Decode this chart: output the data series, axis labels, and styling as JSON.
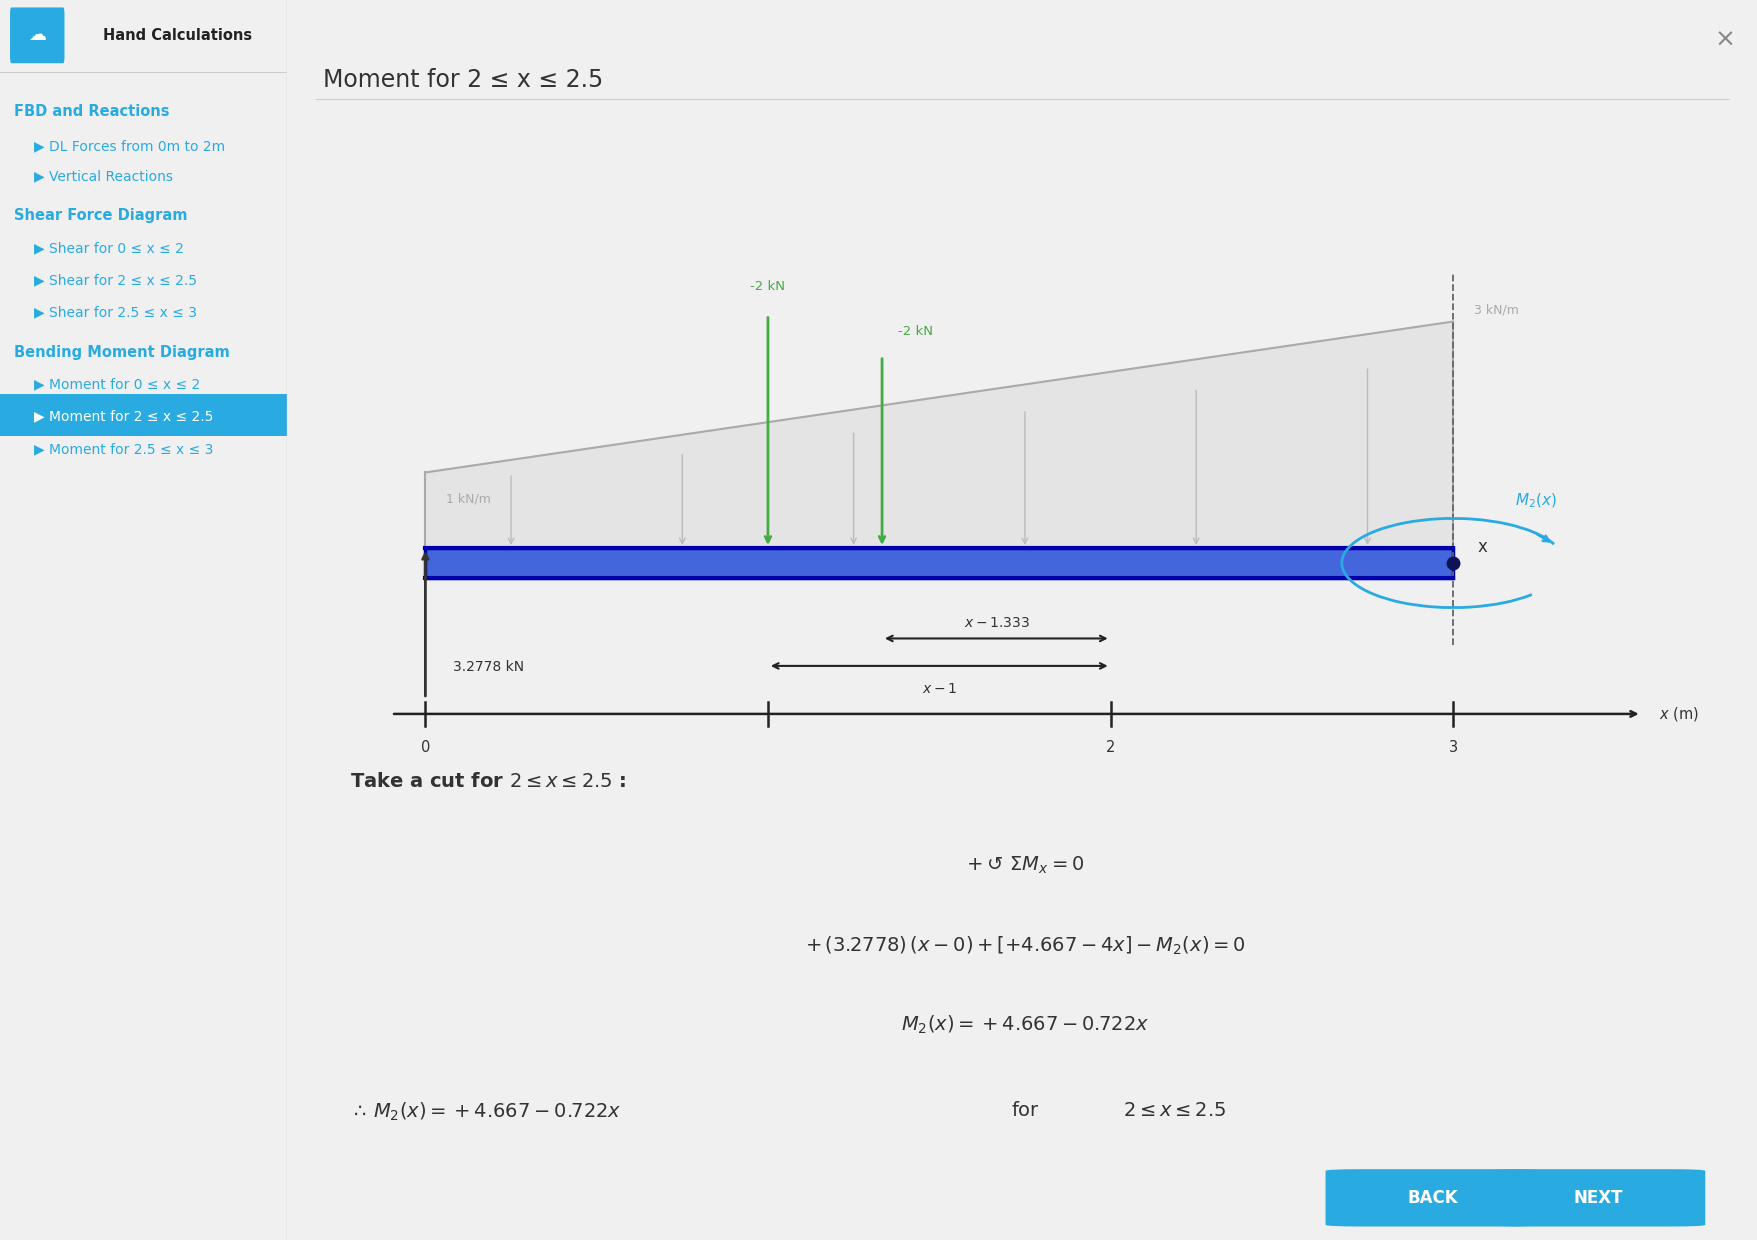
{
  "title": "Moment for 2 ≤ x ≤ 2.5",
  "sidebar_title": "Hand Calculations",
  "highlight_color": "#29abe2",
  "sidebar_items": [
    {
      "text": "FBD and Reactions",
      "level": 0,
      "active": false
    },
    {
      "text": "DL Forces from 0m to 2m",
      "level": 1,
      "active": false
    },
    {
      "text": "Vertical Reactions",
      "level": 1,
      "active": false
    },
    {
      "text": "Shear Force Diagram",
      "level": 0,
      "active": false
    },
    {
      "text": "Shear for 0 ≤ x ≤ 2",
      "level": 1,
      "active": false
    },
    {
      "text": "Shear for 2 ≤ x ≤ 2.5",
      "level": 1,
      "active": false
    },
    {
      "text": "Shear for 2.5 ≤ x ≤ 3",
      "level": 1,
      "active": false
    },
    {
      "text": "Bending Moment Diagram",
      "level": 0,
      "active": false
    },
    {
      "text": "Moment for 0 ≤ x ≤ 2",
      "level": 1,
      "active": false
    },
    {
      "text": "Moment for 2 ≤ x ≤ 2.5",
      "level": 1,
      "active": true
    },
    {
      "text": "Moment for 2.5 ≤ x ≤ 3",
      "level": 1,
      "active": false
    }
  ],
  "beam_color": "#3333cc",
  "beam_light_color": "#5577ee",
  "reaction_force": "3.2778 kN",
  "distributed_load_label": "1 kN/m",
  "distributed_load_label2": "3 kN/m",
  "point_forces": [
    {
      "x": 1.0,
      "label": "-2 kN"
    },
    {
      "x": 1.333,
      "label": "-2 kN"
    }
  ],
  "moment_label": "M_2(x)",
  "back_button": "BACK",
  "next_button": "NEXT",
  "button_color": "#29abe2",
  "button_text_color": "#ffffff"
}
